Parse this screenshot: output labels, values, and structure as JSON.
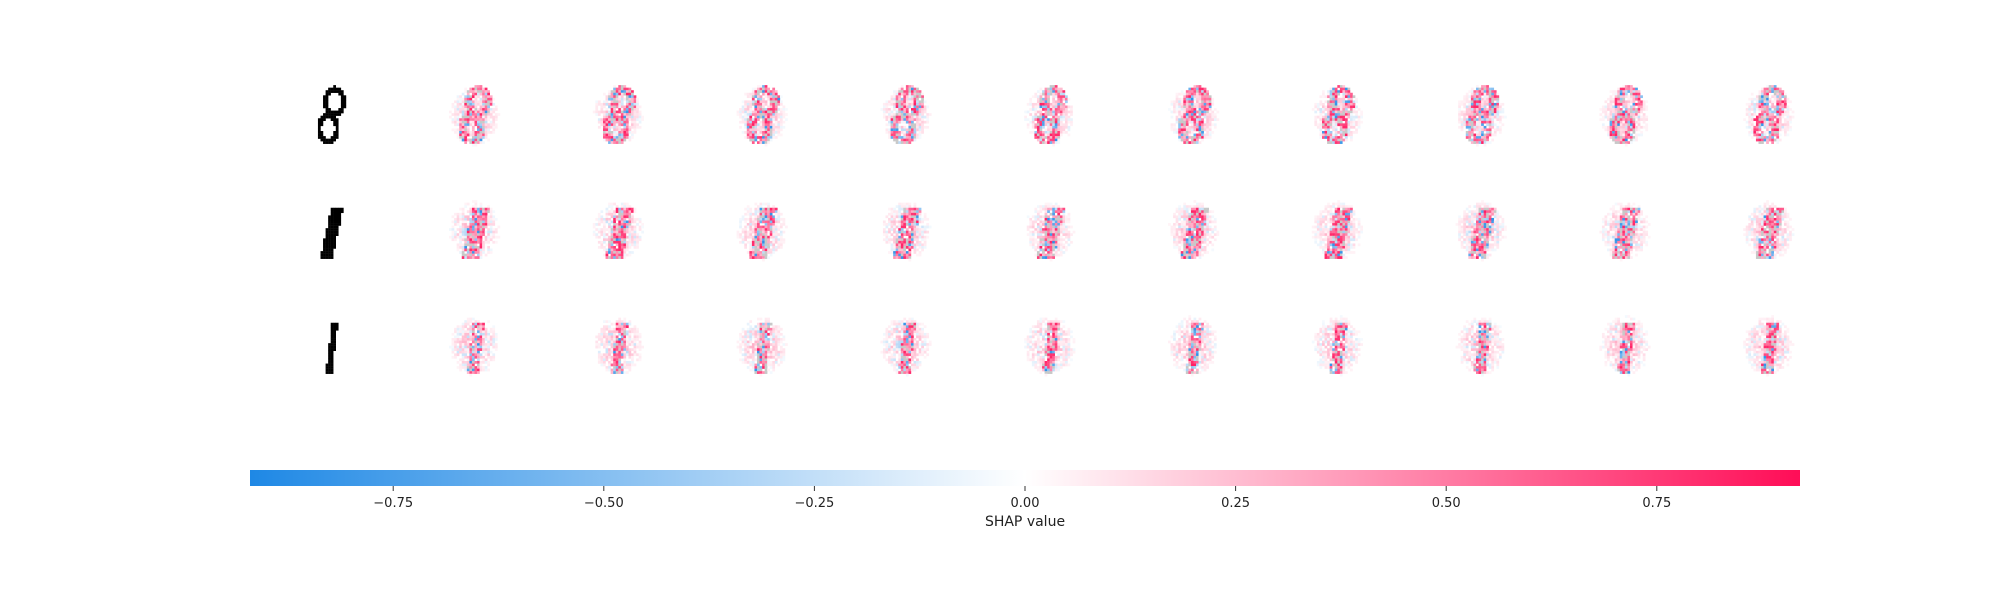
{
  "chart_data": {
    "type": "heatmap",
    "title": "",
    "description_kind": "shap_image_plot",
    "rows": 3,
    "columns_per_row": 10,
    "input_digits": [
      "8",
      "1",
      "1"
    ],
    "image_resolution": [
      28,
      28
    ],
    "colorbar": {
      "label": "SHAP value",
      "vmin": -0.92,
      "vmax": 0.92,
      "ticks": [
        -0.75,
        -0.5,
        -0.25,
        0.0,
        0.25,
        0.5,
        0.75
      ],
      "tick_labels": [
        "−0.75",
        "−0.50",
        "−0.25",
        "0.00",
        "0.25",
        "0.50",
        "0.75"
      ],
      "colors": {
        "negative": "#1e88e5",
        "zero": "#ffffff",
        "positive": "#ff0d57"
      }
    }
  }
}
